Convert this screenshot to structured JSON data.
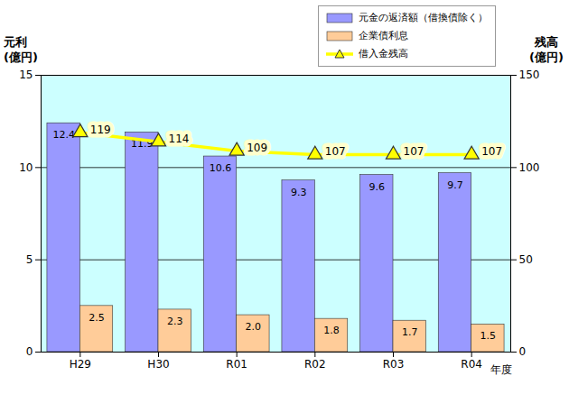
{
  "chart_data": {
    "type": "bar",
    "categories": [
      "H29",
      "H30",
      "R01",
      "R02",
      "R03",
      "R04"
    ],
    "ylabel": "元利\n(億円)",
    "y2label": "残高\n(億円)",
    "xlabel": "年度",
    "ylim": [
      0,
      15
    ],
    "yticks": [
      0,
      5,
      10,
      15
    ],
    "y2lim": [
      0,
      150
    ],
    "y2ticks": [
      0,
      50,
      100,
      150
    ],
    "grid": true,
    "data_labels": true,
    "legend": "top-right",
    "series": [
      {
        "name": "元金の返済額（借換債除く）",
        "type": "bar",
        "color": "#9999ff",
        "values": [
          12.4,
          11.9,
          10.6,
          9.3,
          9.6,
          9.7
        ]
      },
      {
        "name": "企業債利息",
        "type": "bar",
        "color": "#ffcc99",
        "values": [
          2.5,
          2.3,
          2.0,
          1.8,
          1.7,
          1.5
        ],
        "value_labels": [
          "2.5",
          "2.3",
          "2.0",
          "1.8",
          "1.7",
          "1.5"
        ]
      },
      {
        "name": "借入金残高",
        "type": "line",
        "axis": "y2",
        "color": "#ffff00",
        "marker": "triangle",
        "values": [
          119,
          114,
          109,
          107,
          107,
          107
        ]
      }
    ]
  }
}
